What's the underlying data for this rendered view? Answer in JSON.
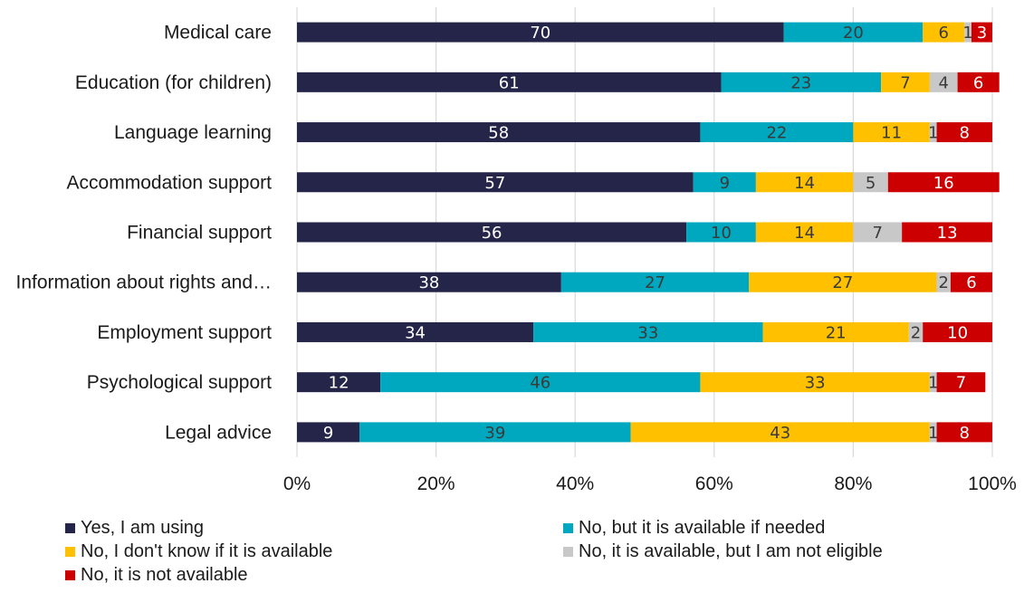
{
  "chart_data": {
    "type": "bar",
    "orientation": "horizontal",
    "stacked": true,
    "percent": true,
    "categories": [
      "Medical care",
      "Education (for children)",
      "Language learning",
      "Accommodation support",
      "Financial support",
      "Information about rights and…",
      "Employment support",
      "Psychological support",
      "Legal advice"
    ],
    "series": [
      {
        "name": "Yes, I am using",
        "color": "#25254a",
        "label_color": "#ffffff",
        "values": [
          70,
          61,
          58,
          57,
          56,
          38,
          34,
          12,
          9
        ]
      },
      {
        "name": "No, but it is available if needed",
        "color": "#00a8bf",
        "label_color": "#3a3a3a",
        "values": [
          20,
          23,
          22,
          9,
          10,
          27,
          33,
          46,
          39
        ]
      },
      {
        "name": "No, I don't know if it is available",
        "color": "#ffc000",
        "label_color": "#3a3a3a",
        "values": [
          6,
          7,
          11,
          14,
          14,
          27,
          21,
          33,
          43
        ]
      },
      {
        "name": "No, it is available, but I am not eligible",
        "color": "#c8c8c8",
        "label_color": "#3a3a3a",
        "values": [
          1,
          4,
          1,
          5,
          7,
          2,
          2,
          1,
          1
        ]
      },
      {
        "name": "No, it is not available",
        "color": "#cc0000",
        "label_color": "#ffffff",
        "values": [
          3,
          6,
          8,
          16,
          13,
          6,
          10,
          7,
          8
        ]
      }
    ],
    "xlim": [
      0,
      100
    ],
    "x_ticks": [
      "0%",
      "20%",
      "40%",
      "60%",
      "80%",
      "100%"
    ],
    "grid": true,
    "legend_position": "bottom",
    "title": "",
    "xlabel": "",
    "ylabel": ""
  }
}
